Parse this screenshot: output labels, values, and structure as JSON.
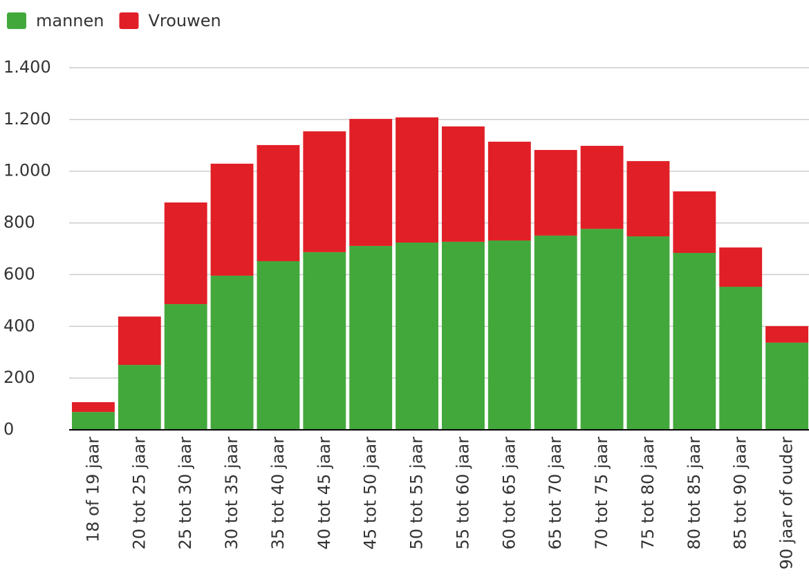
{
  "chart_data": {
    "type": "stacked_bar",
    "categories": [
      "18 of 19 jaar",
      "20 tot 25 jaar",
      "25 tot 30 jaar",
      "30 tot 35 jaar",
      "35 tot 40 jaar",
      "40 tot 45 jaar",
      "45 tot 50 jaar",
      "50 tot 55 jaar",
      "55 tot 60 jaar",
      "60 tot 65 jaar",
      "65 tot 70 jaar",
      "70 tot 75 jaar",
      "75 tot 80 jaar",
      "80 tot 85 jaar",
      "85 tot 90 jaar",
      "90 jaar of ouder"
    ],
    "series": [
      {
        "name": "mannen",
        "color": "#43a83b",
        "values": [
          69,
          251,
          486,
          596,
          652,
          687,
          711,
          724,
          727,
          732,
          751,
          777,
          748,
          684,
          553,
          337
        ]
      },
      {
        "name": "Vrouwen",
        "color": "#e11f26",
        "values": [
          38,
          187,
          393,
          433,
          449,
          467,
          491,
          484,
          446,
          382,
          331,
          321,
          291,
          238,
          152,
          64
        ]
      }
    ],
    "ylim": [
      0,
      1400
    ],
    "yticks": [
      0,
      200,
      400,
      600,
      800,
      {
        "value": 1000,
        "label": "1.000"
      },
      {
        "value": 1200,
        "label": "1.200"
      },
      {
        "value": 1400,
        "label": "1.400"
      }
    ],
    "grid": true,
    "legend": "top-left"
  }
}
